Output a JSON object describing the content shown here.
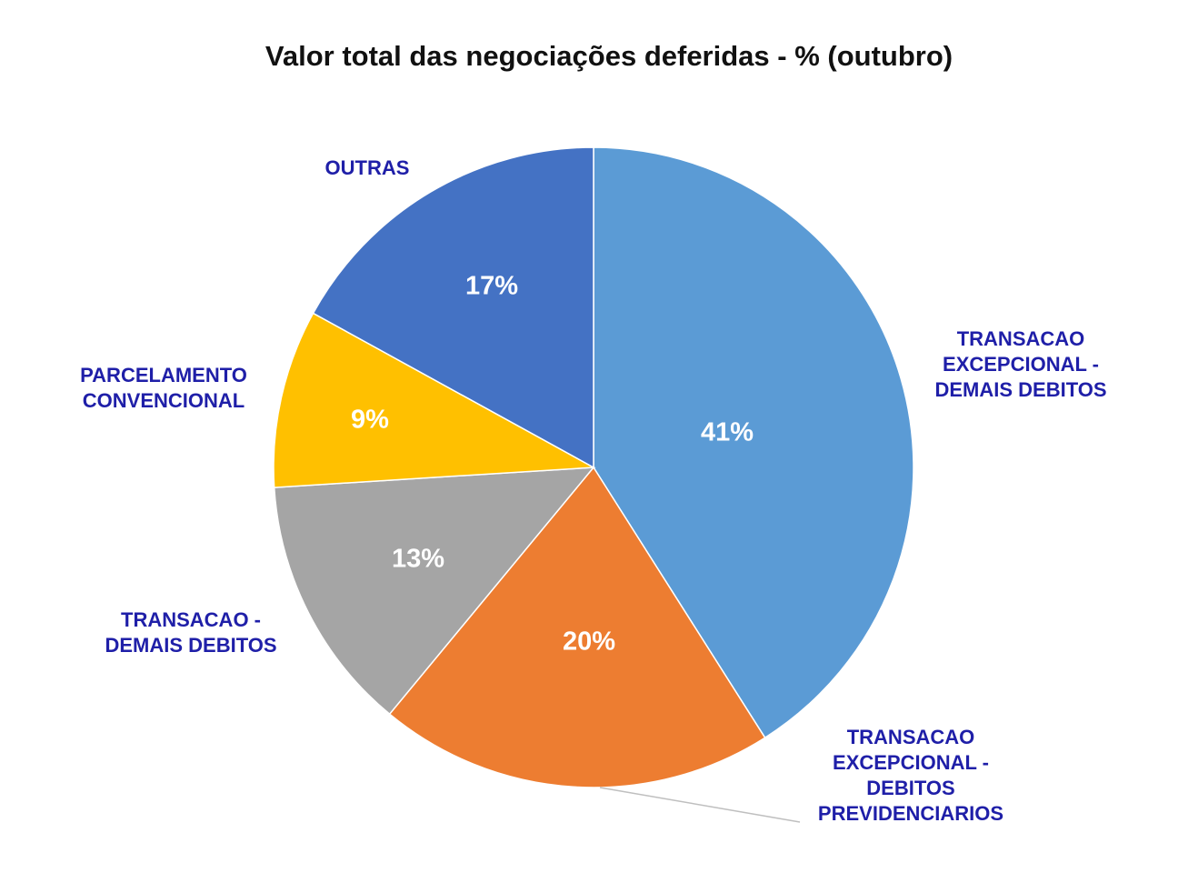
{
  "chart_data": {
    "type": "pie",
    "title": "Valor total das negociações deferidas - % (outubro)",
    "slices": [
      {
        "name": "TRANSACAO EXCEPCIONAL - DEMAIS DEBITOS",
        "name_lines": [
          "TRANSACAO",
          "EXCEPCIONAL -",
          "DEMAIS DEBITOS"
        ],
        "value": 41,
        "label": "41%",
        "color": "#5B9BD5"
      },
      {
        "name": "TRANSACAO EXCEPCIONAL - DEBITOS PREVIDENCIARIOS",
        "name_lines": [
          "TRANSACAO",
          "EXCEPCIONAL -",
          "DEBITOS",
          "PREVIDENCIARIOS"
        ],
        "value": 20,
        "label": "20%",
        "color": "#ED7D31"
      },
      {
        "name": "TRANSACAO - DEMAIS DEBITOS",
        "name_lines": [
          "TRANSACAO -",
          "DEMAIS DEBITOS"
        ],
        "value": 13,
        "label": "13%",
        "color": "#A5A5A5"
      },
      {
        "name": "PARCELAMENTO CONVENCIONAL",
        "name_lines": [
          "PARCELAMENTO",
          "CONVENCIONAL"
        ],
        "value": 9,
        "label": "9%",
        "color": "#FFC000"
      },
      {
        "name": "OUTRAS",
        "name_lines": [
          "OUTRAS"
        ],
        "value": 17,
        "label": "17%",
        "color": "#4472C4"
      }
    ],
    "category_label_color": "#1F1FA8",
    "value_label_color": "#FFFFFF"
  }
}
